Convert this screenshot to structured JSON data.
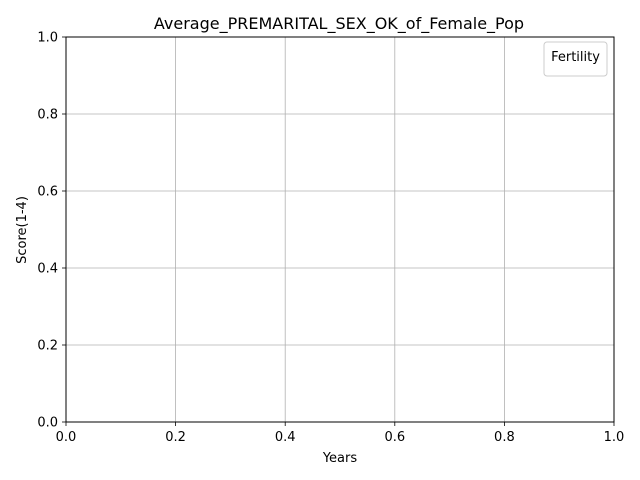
{
  "chart_data": {
    "type": "line",
    "title": "Average_PREMARITAL_SEX_OK_of_Female_Pop",
    "xlabel": "Years",
    "ylabel": "Score(1-4)",
    "xlim": [
      0,
      1
    ],
    "ylim": [
      0,
      1
    ],
    "x_ticks": [
      "0.0",
      "0.2",
      "0.4",
      "0.6",
      "0.8",
      "1.0"
    ],
    "y_ticks": [
      "0.0",
      "0.2",
      "0.4",
      "0.6",
      "0.8",
      "1.0"
    ],
    "grid": true,
    "legend": {
      "title": "Fertility",
      "location": "upper right",
      "entries": []
    },
    "series": []
  },
  "colors": {
    "grid": "#b0b0b0",
    "axes": "#000000",
    "background": "#ffffff",
    "legend_border": "#cccccc"
  }
}
